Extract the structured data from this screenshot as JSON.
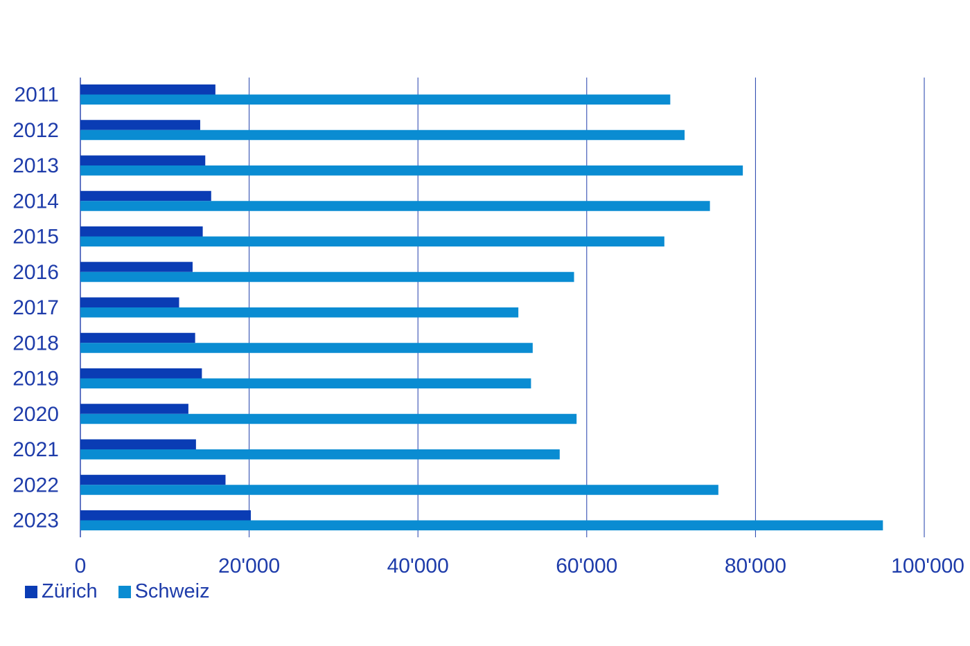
{
  "chart_data": {
    "type": "bar",
    "orientation": "horizontal",
    "title": "",
    "xlabel": "",
    "ylabel": "",
    "categories": [
      "2011",
      "2012",
      "2013",
      "2014",
      "2015",
      "2016",
      "2017",
      "2018",
      "2019",
      "2020",
      "2021",
      "2022",
      "2023"
    ],
    "series": [
      {
        "name": "Zürich",
        "color": "#0a3cb4",
        "values": [
          16000,
          14200,
          14800,
          15500,
          14500,
          13300,
          11700,
          13600,
          14400,
          12800,
          13700,
          17200,
          20200
        ]
      },
      {
        "name": "Schweiz",
        "color": "#0a8cd2",
        "values": [
          69900,
          71600,
          78500,
          74600,
          69200,
          58500,
          51900,
          53600,
          53400,
          58800,
          56800,
          75600,
          95100
        ]
      }
    ],
    "xlim": [
      0,
      100000
    ],
    "x_ticks": [
      0,
      20000,
      40000,
      60000,
      80000,
      100000
    ],
    "x_tick_labels": [
      "0",
      "20'000",
      "40'000",
      "60'000",
      "80'000",
      "100'000"
    ],
    "grid": "vertical",
    "legend_position": "bottom-left",
    "text_color": "#1e3caa",
    "grid_color": "#1e3caa"
  }
}
